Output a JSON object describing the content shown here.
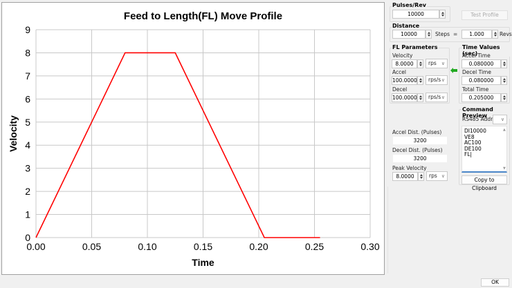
{
  "chart_data": {
    "type": "line",
    "title": "Feed to Length(FL) Move Profile",
    "xlabel": "Time",
    "ylabel": "Velocity",
    "xlim": [
      0.0,
      0.3
    ],
    "ylim": [
      0,
      9
    ],
    "x_ticks": [
      "0.00",
      "0.05",
      "0.10",
      "0.15",
      "0.20",
      "0.25",
      "0.30"
    ],
    "y_ticks": [
      "0",
      "1",
      "2",
      "3",
      "4",
      "5",
      "6",
      "7",
      "8",
      "9"
    ],
    "grid": true,
    "series": [
      {
        "name": "Velocity",
        "color": "#ff0000",
        "x": [
          0.0,
          0.08,
          0.125,
          0.205,
          0.255
        ],
        "y": [
          0,
          8,
          8,
          0,
          0
        ]
      }
    ]
  },
  "pulses_rev": {
    "title": "Pulses/Rev",
    "value": "10000"
  },
  "test_profile_label": "Test Profile",
  "distance": {
    "title": "Distance",
    "steps_value": "10000",
    "steps_label": "Steps",
    "equals": "=",
    "revs_value": "1.000",
    "revs_label": "Revs"
  },
  "fl_params": {
    "title": "FL Parameters",
    "velocity_label": "Velocity",
    "velocity_value": "8.0000",
    "velocity_unit": "rps",
    "accel_label": "Accel",
    "accel_value": "100.0000",
    "accel_unit": "rps/s",
    "decel_label": "Decel",
    "decel_value": "100.0000",
    "decel_unit": "rps/s"
  },
  "time_values": {
    "title": "Time Values (sec)",
    "accel_time_label": "Accel Time",
    "accel_time_value": "0.080000",
    "decel_time_label": "Decel Time",
    "decel_time_value": "0.080000",
    "total_time_label": "Total Time",
    "total_time_value": "0.205000"
  },
  "distances": {
    "accel_label": "Accel Dist. (Pulses)",
    "accel_value": "3200",
    "decel_label": "Decel Dist. (Pulses)",
    "decel_value": "3200",
    "peak_label": "Peak Velocity",
    "peak_value": "8.0000",
    "peak_unit": "rps"
  },
  "command_preview": {
    "title": "Command Preview",
    "rs485_label": "RS485 Addr.",
    "rs485_value": "",
    "text": "DI10000\nVE8\nAC100\nDE100\nFL|",
    "copy_label": "Copy to Clipboard"
  },
  "ok_label": "OK",
  "colors": {
    "series": "#ff0000",
    "arrow": "#22aa22",
    "focus_underline": "#4a86c8"
  }
}
